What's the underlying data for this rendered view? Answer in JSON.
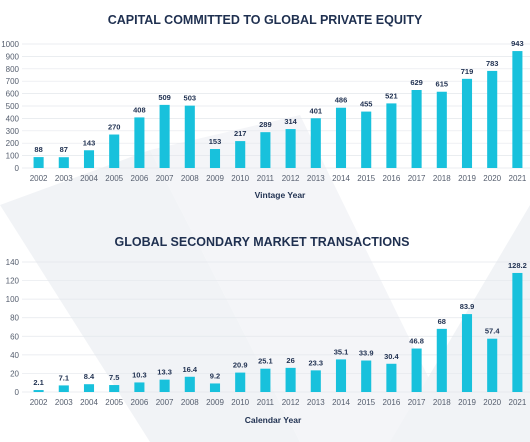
{
  "chart_data": [
    {
      "type": "bar",
      "title": "CAPITAL COMMITTED TO GLOBAL PRIVATE EQUITY",
      "xlabel": "Vintage Year",
      "ylabel": "",
      "categories": [
        "2002",
        "2003",
        "2004",
        "2005",
        "2006",
        "2007",
        "2008",
        "2009",
        "2010",
        "2011",
        "2012",
        "2013",
        "2014",
        "2015",
        "2016",
        "2017",
        "2018",
        "2019",
        "2020",
        "2021"
      ],
      "values": [
        88,
        87,
        143,
        270,
        408,
        509,
        503,
        153,
        217,
        289,
        314,
        401,
        486,
        455,
        521,
        629,
        615,
        719,
        783,
        943
      ],
      "value_labels": [
        "88",
        "87",
        "143",
        "270",
        "408",
        "509",
        "503",
        "153",
        "217",
        "289",
        "314",
        "401",
        "486",
        "455",
        "521",
        "629",
        "615",
        "719",
        "783",
        "943"
      ],
      "yticks": [
        "0",
        "100",
        "200",
        "300",
        "400",
        "500",
        "600",
        "700",
        "800",
        "900",
        "1000"
      ],
      "ylim": [
        0,
        1000
      ],
      "grid": true,
      "bar_color": "#18c1dc"
    },
    {
      "type": "bar",
      "title": "GLOBAL SECONDARY MARKET TRANSACTIONS",
      "xlabel": "Calendar Year",
      "ylabel": "",
      "categories": [
        "2002",
        "2003",
        "2004",
        "2005",
        "2006",
        "2007",
        "2008",
        "2009",
        "2010",
        "2011",
        "2012",
        "2013",
        "2014",
        "2015",
        "2016",
        "2017",
        "2018",
        "2019",
        "2020",
        "2021"
      ],
      "values": [
        2.1,
        7.1,
        8.4,
        7.5,
        10.3,
        13.3,
        16.4,
        9.2,
        20.9,
        25.1,
        26,
        23.3,
        35.1,
        33.9,
        30.4,
        46.8,
        68,
        83.9,
        57.4,
        128.2
      ],
      "value_labels": [
        "2.1",
        "7.1",
        "8.4",
        "7.5",
        "10.3",
        "13.3",
        "16.4",
        "9.2",
        "20.9",
        "25.1",
        "26",
        "23.3",
        "35.1",
        "33.9",
        "30.4",
        "46.8",
        "68",
        "83.9",
        "57.4",
        "128.2"
      ],
      "yticks": [
        "0",
        "20",
        "40",
        "60",
        "80",
        "100",
        "120",
        "140"
      ],
      "ylim": [
        0,
        140
      ],
      "grid": true,
      "bar_color": "#18c1dc"
    }
  ]
}
